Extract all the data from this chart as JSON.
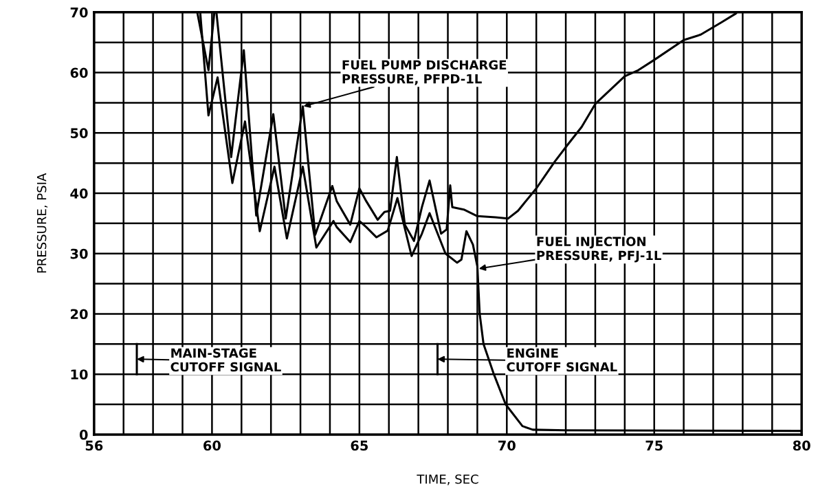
{
  "chart_data": {
    "type": "line",
    "xlabel": "TIME, SEC",
    "ylabel": "PRESSURE, PSIA",
    "xlim": [
      56,
      80
    ],
    "xticks": [
      56,
      60,
      65,
      70,
      75,
      80
    ],
    "ylim": [
      0,
      70
    ],
    "yticks": [
      0,
      10,
      20,
      30,
      40,
      50,
      60,
      70
    ],
    "grid": true,
    "line_style": "solid",
    "series": [
      {
        "color": "#000000",
        "x": [
          59.5,
          59.88,
          60.08,
          60.15,
          60.65,
          61.08,
          61.5,
          62.08,
          62.5,
          63.08,
          63.5,
          64.08,
          64.23,
          64.69,
          65.0,
          65.23,
          65.62,
          65.85,
          66.04,
          66.27,
          66.54,
          66.85,
          67.12,
          67.38,
          67.77,
          67.96,
          68.08,
          68.15,
          68.54,
          69.0,
          69.62,
          70.04,
          70.38,
          71.0,
          71.62,
          72.04,
          72.54,
          73.0,
          74.0,
          74.46,
          75.0,
          76.0,
          76.58,
          77.27,
          77.77,
          77.8
        ],
        "values": [
          70,
          60.4,
          70,
          70,
          46.0,
          63.7,
          36.3,
          53.1,
          35.8,
          54.4,
          33.1,
          41.2,
          38.7,
          34.8,
          40.8,
          38.7,
          35.6,
          36.9,
          37.1,
          46.0,
          34.8,
          32.1,
          37.7,
          42.1,
          33.3,
          34.0,
          41.3,
          37.7,
          37.3,
          36.2,
          36.0,
          35.8,
          37.1,
          40.8,
          45.2,
          47.9,
          51.0,
          54.8,
          59.4,
          60.4,
          62.1,
          65.4,
          66.3,
          68.3,
          69.8,
          70
        ]
      },
      {
        "color": "#000000",
        "x": [
          57.45,
          57.45
        ],
        "values": [
          10,
          15
        ]
      },
      {
        "color": "#000000",
        "x": [
          67.65,
          67.65
        ],
        "values": [
          10,
          15
        ]
      },
      {
        "color": "#000000",
        "x": [
          59.6,
          59.88,
          60.19,
          60.69,
          61.12,
          61.62,
          62.12,
          62.54,
          63.08,
          63.54,
          64.12,
          64.23,
          64.69,
          65.0,
          65.23,
          65.58,
          65.96,
          66.29,
          66.77,
          67.12,
          67.38,
          67.92,
          68.31,
          68.46,
          68.63,
          68.85,
          69.0,
          69.08,
          69.21,
          69.56,
          69.96,
          70.53,
          70.88,
          72.0,
          80.0
        ],
        "values": [
          70,
          52.9,
          59.2,
          41.7,
          51.9,
          33.7,
          44.4,
          32.5,
          44.4,
          31.0,
          35.4,
          34.4,
          31.9,
          35.4,
          34.4,
          32.7,
          33.8,
          39.2,
          29.6,
          33.3,
          36.7,
          30.0,
          28.5,
          29.0,
          33.7,
          31.5,
          27.9,
          20.0,
          15.0,
          10.0,
          5.0,
          1.4,
          0.8,
          0.7,
          0.6
        ]
      }
    ],
    "annotations": [
      {
        "text": "FUEL PUMP DISCHARGE\nPRESSURE, PFPD-1L",
        "x": 63.1,
        "y": 54.4
      },
      {
        "text": "FUEL INJECTION\nPRESSURE, PFJ-1L",
        "x": 69.05,
        "y": 27.5
      },
      {
        "text": "MAIN-STAGE\nCUTOFF SIGNAL",
        "x": 57.45,
        "y": 12.5
      },
      {
        "text": "ENGINE\nCUTOFF SIGNAL",
        "x": 67.65,
        "y": 12.5
      }
    ]
  }
}
